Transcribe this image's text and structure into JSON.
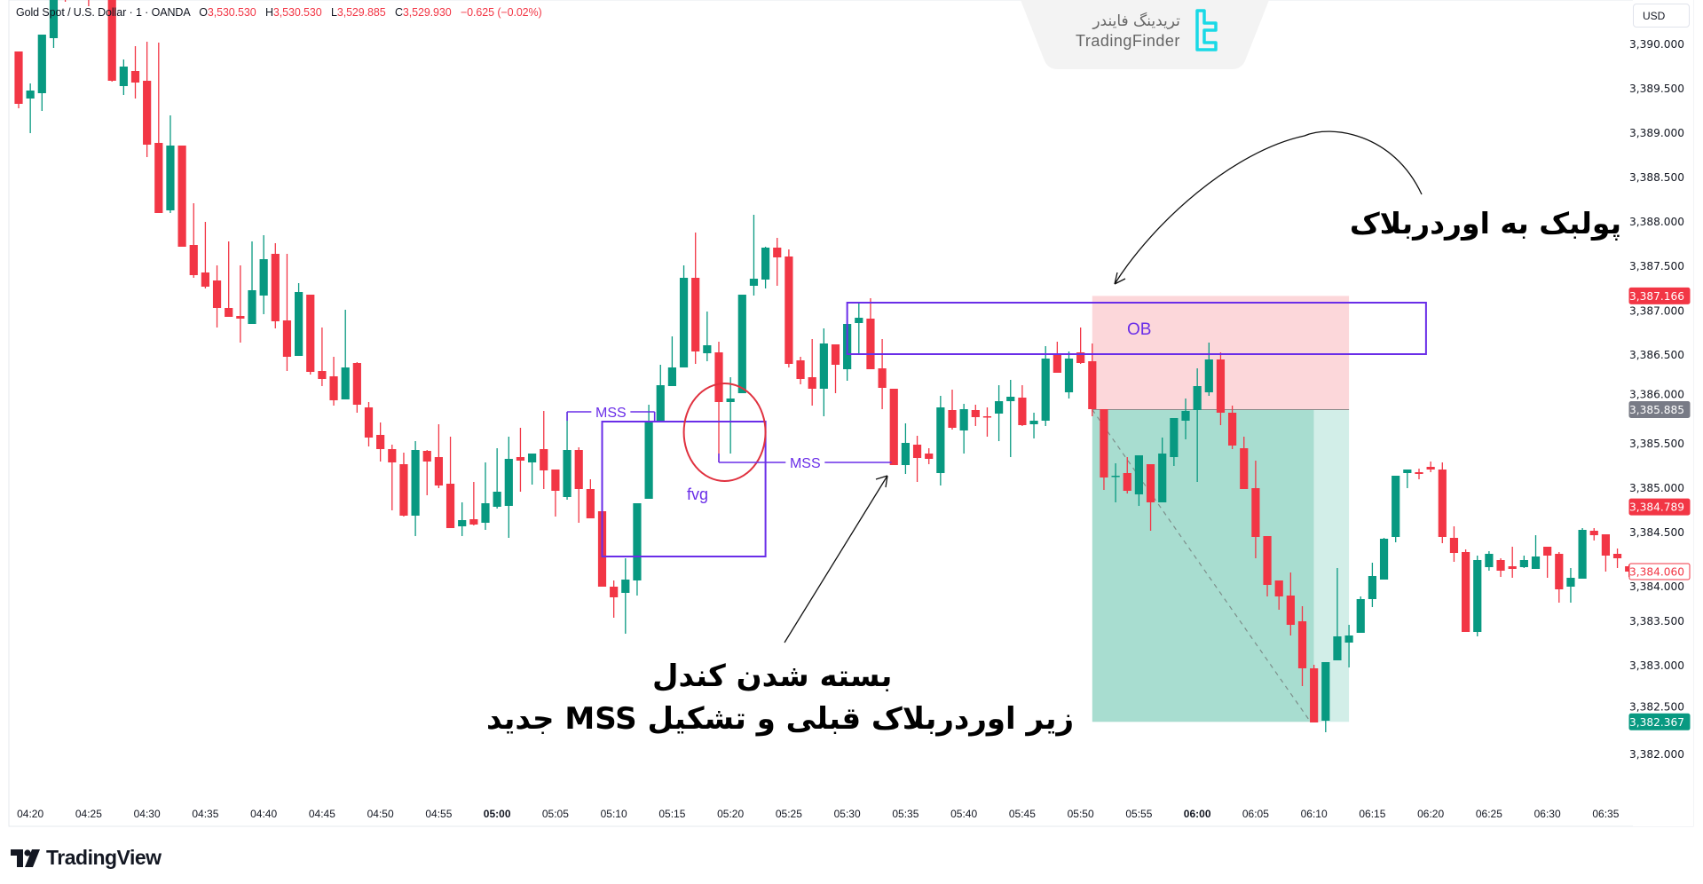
{
  "header": {
    "symbol": "Gold Spot / U.S. Dollar · 1 · OANDA",
    "open_label": "O",
    "open": "3,530.530",
    "high_label": "H",
    "high": "3,530.530",
    "low_label": "L",
    "low": "3,529.885",
    "close_label": "C",
    "close": "3,529.930",
    "change": "−0.625 (−0.02%)"
  },
  "price_axis": {
    "currency": "USD"
  },
  "watermark": {
    "name_fa": "تریدینگ فایندر",
    "name_en": "TradingFinder"
  },
  "footer": {
    "brand": "TradingView"
  },
  "annotations": {
    "pullback_text": "پولبک به اوردربلاک",
    "close_text_line1": "بسته شدن کندل",
    "close_text_line2": "زیر اوردربلاک قبلی و تشکیل MSS جدید",
    "ob_label": "OB",
    "mss_label_1": "MSS",
    "mss_label_2": "MSS",
    "fvg_label": "fvg"
  },
  "colors": {
    "up": "#089981",
    "down": "#f23645",
    "drawing": "#6a2ee8",
    "circle": "#e0313f",
    "stop_zone": "#fcd7da",
    "target_zone": "#a8ddd0",
    "target_zone_light": "#d2eee8"
  },
  "chart_data": {
    "type": "candlestick",
    "instrument": "Gold Spot / U.S. Dollar",
    "interval": "1",
    "ylim": [
      3381.75,
      3390.5
    ],
    "y_ticks": [
      "3,390.000",
      "3,389.500",
      "3,389.000",
      "3,388.500",
      "3,388.000",
      "3,387.500",
      "3,387.000",
      "3,386.500",
      "3,386.000",
      "3,385.500",
      "3,385.000",
      "3,384.500",
      "3,384.000",
      "3,383.500",
      "3,383.000",
      "3,382.500",
      "3,382.000"
    ],
    "y_tick_values": [
      3390,
      3389.5,
      3389,
      3388.5,
      3388,
      3387.5,
      3387,
      3386.5,
      3386,
      3385.5,
      3385,
      3384.5,
      3384,
      3383.5,
      3383,
      3382.5,
      3382
    ],
    "x_ticks": [
      "04:20",
      "04:25",
      "04:30",
      "04:35",
      "04:40",
      "04:45",
      "04:50",
      "04:55",
      "05:00",
      "05:05",
      "05:10",
      "05:15",
      "05:20",
      "05:25",
      "05:30",
      "05:35",
      "05:40",
      "05:45",
      "05:50",
      "05:55",
      "06:00",
      "06:05",
      "06:10",
      "06:15",
      "06:20",
      "06:25",
      "06:30",
      "06:35"
    ],
    "x_ticks_bold": [
      "05:00",
      "06:00"
    ],
    "price_badges": [
      {
        "value": 3387.166,
        "label": "3,387.166",
        "style": "red"
      },
      {
        "value": 3385.885,
        "label": "3,385.885",
        "style": "grey"
      },
      {
        "value": 3384.789,
        "label": "3,384.789",
        "style": "red"
      },
      {
        "value": 3384.06,
        "label": "3,384.060",
        "style": "outline"
      },
      {
        "value": 3382.367,
        "label": "3,382.367",
        "style": "green"
      }
    ],
    "candles_columns": [
      "time",
      "open",
      "high",
      "low",
      "close"
    ],
    "candles": [
      [
        "04:19",
        3389.92,
        3389.92,
        3389.28,
        3389.33
      ],
      [
        "04:20",
        3389.39,
        3389.56,
        3389.0,
        3389.48
      ],
      [
        "04:21",
        3389.45,
        3390.11,
        3389.25,
        3390.11
      ],
      [
        "04:22",
        3390.07,
        3390.7,
        3389.96,
        3390.6
      ],
      [
        "04:23",
        3390.9,
        3391.0,
        3390.48,
        3390.6
      ],
      [
        "04:24",
        3390.6,
        3391.1,
        3390.55,
        3391.0
      ],
      [
        "04:25",
        3391.0,
        3391.1,
        3390.43,
        3390.7
      ],
      [
        "04:26",
        3390.8,
        3391.0,
        3390.52,
        3390.6
      ],
      [
        "04:27",
        3390.6,
        3390.8,
        3389.58,
        3389.59
      ],
      [
        "04:28",
        3389.53,
        3389.83,
        3389.43,
        3389.75
      ],
      [
        "04:29",
        3389.7,
        3389.98,
        3389.39,
        3389.57
      ],
      [
        "04:30",
        3389.59,
        3390.03,
        3388.73,
        3388.87
      ],
      [
        "04:31",
        3388.89,
        3390.02,
        3388.1,
        3388.1
      ],
      [
        "04:32",
        3388.13,
        3389.2,
        3388.1,
        3388.86
      ],
      [
        "04:33",
        3388.86,
        3388.86,
        3387.72,
        3387.72
      ],
      [
        "04:34",
        3387.74,
        3388.21,
        3387.37,
        3387.4
      ],
      [
        "04:35",
        3387.43,
        3388.0,
        3387.25,
        3387.27
      ],
      [
        "04:36",
        3387.34,
        3387.51,
        3386.81,
        3387.03
      ],
      [
        "04:37",
        3387.03,
        3387.78,
        3386.93,
        3386.93
      ],
      [
        "04:38",
        3386.94,
        3387.51,
        3386.64,
        3386.91
      ],
      [
        "04:39",
        3386.85,
        3387.78,
        3386.85,
        3387.23
      ],
      [
        "04:40",
        3387.17,
        3387.85,
        3386.96,
        3387.58
      ],
      [
        "04:41",
        3387.64,
        3387.76,
        3386.8,
        3386.88
      ],
      [
        "04:42",
        3386.89,
        3387.64,
        3386.32,
        3386.48
      ],
      [
        "04:43",
        3386.49,
        3387.31,
        3386.49,
        3387.21
      ],
      [
        "04:44",
        3387.18,
        3387.18,
        3386.28,
        3386.31
      ],
      [
        "04:45",
        3386.32,
        3386.81,
        3386.15,
        3386.23
      ],
      [
        "04:46",
        3386.26,
        3386.48,
        3385.93,
        3385.99
      ],
      [
        "04:47",
        3386.0,
        3387.01,
        3386.0,
        3386.36
      ],
      [
        "04:48",
        3386.41,
        3386.42,
        3385.85,
        3385.94
      ],
      [
        "04:49",
        3385.91,
        3385.97,
        3385.47,
        3385.57
      ],
      [
        "04:50",
        3385.6,
        3385.74,
        3385.3,
        3385.44
      ],
      [
        "04:51",
        3385.44,
        3385.49,
        3384.75,
        3385.29
      ],
      [
        "04:52",
        3385.27,
        3385.4,
        3384.68,
        3384.69
      ],
      [
        "04:53",
        3384.69,
        3385.53,
        3384.46,
        3385.43
      ],
      [
        "04:54",
        3385.42,
        3385.43,
        3384.92,
        3385.3
      ],
      [
        "04:55",
        3385.35,
        3385.72,
        3385.0,
        3385.03
      ],
      [
        "04:56",
        3385.05,
        3385.58,
        3384.55,
        3384.55
      ],
      [
        "04:57",
        3384.57,
        3384.84,
        3384.46,
        3384.64
      ],
      [
        "04:58",
        3384.65,
        3385.07,
        3384.58,
        3384.59
      ],
      [
        "04:59",
        3384.61,
        3385.29,
        3384.53,
        3384.83
      ],
      [
        "05:00",
        3384.79,
        3385.45,
        3384.77,
        3384.96
      ],
      [
        "05:01",
        3384.8,
        3385.58,
        3384.44,
        3385.33
      ],
      [
        "05:02",
        3385.35,
        3385.68,
        3384.96,
        3385.31
      ],
      [
        "05:03",
        3385.29,
        3385.39,
        3385.04,
        3385.39
      ],
      [
        "05:04",
        3385.44,
        3385.87,
        3384.99,
        3385.2
      ],
      [
        "05:05",
        3385.21,
        3385.21,
        3384.68,
        3384.97
      ],
      [
        "05:06",
        3384.9,
        3385.86,
        3384.87,
        3385.43
      ],
      [
        "05:07",
        3385.43,
        3385.46,
        3384.61,
        3384.99
      ],
      [
        "05:08",
        3384.99,
        3385.1,
        3384.66,
        3384.66
      ],
      [
        "05:09",
        3384.74,
        3384.74,
        3383.89,
        3383.89
      ],
      [
        "05:10",
        3383.89,
        3383.96,
        3383.54,
        3383.77
      ],
      [
        "05:11",
        3383.82,
        3384.21,
        3383.36,
        3383.97
      ],
      [
        "05:12",
        3383.96,
        3384.83,
        3383.79,
        3384.83
      ],
      [
        "05:13",
        3384.88,
        3385.94,
        3384.88,
        3385.76
      ],
      [
        "05:14",
        3385.76,
        3386.39,
        3385.76,
        3386.16
      ],
      [
        "05:15",
        3386.15,
        3386.71,
        3386.15,
        3386.36
      ],
      [
        "05:16",
        3386.36,
        3387.51,
        3386.36,
        3387.37
      ],
      [
        "05:17",
        3387.37,
        3387.88,
        3386.4,
        3386.54
      ],
      [
        "05:18",
        3386.52,
        3386.99,
        3386.43,
        3386.61
      ],
      [
        "05:19",
        3386.53,
        3386.65,
        3385.29,
        3385.97
      ],
      [
        "05:20",
        3385.97,
        3386.25,
        3385.39,
        3386.01
      ],
      [
        "05:21",
        3386.07,
        3387.18,
        3386.07,
        3387.18
      ],
      [
        "05:22",
        3387.28,
        3388.08,
        3387.17,
        3387.36
      ],
      [
        "05:23",
        3387.35,
        3387.72,
        3387.25,
        3387.71
      ],
      [
        "05:24",
        3387.71,
        3387.82,
        3387.28,
        3387.6
      ],
      [
        "05:25",
        3387.61,
        3387.69,
        3386.36,
        3386.4
      ],
      [
        "05:26",
        3386.44,
        3386.48,
        3386.17,
        3386.23
      ],
      [
        "05:27",
        3386.25,
        3386.68,
        3385.93,
        3386.12
      ],
      [
        "05:28",
        3386.12,
        3386.8,
        3385.81,
        3386.63
      ],
      [
        "05:29",
        3386.62,
        3386.62,
        3386.07,
        3386.39
      ],
      [
        "05:30",
        3386.34,
        3386.85,
        3386.21,
        3386.85
      ],
      [
        "05:31",
        3386.86,
        3387.09,
        3386.5,
        3386.92
      ],
      [
        "05:32",
        3386.91,
        3387.14,
        3386.34,
        3386.34
      ],
      [
        "05:33",
        3386.35,
        3386.68,
        3385.89,
        3386.13
      ],
      [
        "05:34",
        3386.12,
        3386.12,
        3385.26,
        3385.26
      ],
      [
        "05:35",
        3385.26,
        3385.73,
        3385.16,
        3385.51
      ],
      [
        "05:36",
        3385.49,
        3385.59,
        3385.07,
        3385.34
      ],
      [
        "05:37",
        3385.39,
        3385.45,
        3385.27,
        3385.33
      ],
      [
        "05:38",
        3385.17,
        3386.04,
        3385.03,
        3385.91
      ],
      [
        "05:39",
        3385.88,
        3386.11,
        3385.66,
        3385.68
      ],
      [
        "05:40",
        3385.65,
        3385.95,
        3385.39,
        3385.89
      ],
      [
        "05:41",
        3385.88,
        3385.94,
        3385.7,
        3385.8
      ],
      [
        "05:42",
        3385.81,
        3385.91,
        3385.58,
        3385.8
      ],
      [
        "05:43",
        3385.84,
        3386.16,
        3385.53,
        3385.98
      ],
      [
        "05:44",
        3385.98,
        3386.22,
        3385.35,
        3386.03
      ],
      [
        "05:45",
        3386.02,
        3386.16,
        3385.7,
        3385.71
      ],
      [
        "05:46",
        3385.72,
        3385.85,
        3385.56,
        3385.76
      ],
      [
        "05:47",
        3385.76,
        3386.6,
        3385.7,
        3386.46
      ],
      [
        "05:48",
        3386.5,
        3386.65,
        3386.3,
        3386.3
      ],
      [
        "05:49",
        3386.08,
        3386.54,
        3386.01,
        3386.46
      ],
      [
        "05:50",
        3386.53,
        3386.81,
        3386.4,
        3386.41
      ],
      [
        "05:51",
        3386.43,
        3386.63,
        3385.81,
        3385.89
      ],
      [
        "05:52",
        3385.89,
        3385.89,
        3384.98,
        3385.12
      ],
      [
        "05:53",
        3385.13,
        3385.28,
        3384.84,
        3385.14
      ],
      [
        "05:54",
        3385.17,
        3385.35,
        3384.94,
        3384.97
      ],
      [
        "05:55",
        3384.93,
        3385.37,
        3384.8,
        3385.37
      ],
      [
        "05:56",
        3385.27,
        3385.27,
        3384.52,
        3384.84
      ],
      [
        "05:57",
        3384.84,
        3385.57,
        3384.84,
        3385.39
      ],
      [
        "05:58",
        3385.35,
        3385.79,
        3385.25,
        3385.79
      ],
      [
        "05:59",
        3385.76,
        3386.01,
        3385.55,
        3385.87
      ],
      [
        "06:00",
        3385.88,
        3386.35,
        3385.07,
        3386.15
      ],
      [
        "06:01",
        3386.08,
        3386.64,
        3386.04,
        3386.45
      ],
      [
        "06:02",
        3386.45,
        3386.53,
        3385.71,
        3385.85
      ],
      [
        "06:03",
        3385.85,
        3385.93,
        3385.44,
        3385.48
      ],
      [
        "06:04",
        3385.45,
        3385.58,
        3384.99,
        3384.99
      ],
      [
        "06:05",
        3385.0,
        3385.31,
        3384.21,
        3384.45
      ],
      [
        "06:06",
        3384.46,
        3384.46,
        3383.78,
        3383.91
      ],
      [
        "06:07",
        3383.96,
        3383.96,
        3383.63,
        3383.78
      ],
      [
        "06:08",
        3383.79,
        3384.05,
        3383.34,
        3383.46
      ],
      [
        "06:09",
        3383.5,
        3383.67,
        3382.77,
        3382.97
      ],
      [
        "06:10",
        3382.97,
        3383.01,
        3382.36,
        3382.36
      ],
      [
        "06:11",
        3382.38,
        3383.04,
        3382.25,
        3383.04
      ],
      [
        "06:12",
        3383.06,
        3384.1,
        3383.06,
        3383.33
      ],
      [
        "06:13",
        3383.26,
        3383.46,
        3382.98,
        3383.34
      ],
      [
        "06:14",
        3383.37,
        3383.78,
        3383.37,
        3383.75
      ],
      [
        "06:15",
        3383.75,
        3384.16,
        3383.66,
        3384.01
      ],
      [
        "06:16",
        3383.97,
        3384.44,
        3383.97,
        3384.43
      ],
      [
        "06:17",
        3384.45,
        3385.14,
        3384.39,
        3385.14
      ],
      [
        "06:18",
        3385.17,
        3385.21,
        3385.0,
        3385.21
      ],
      [
        "06:19",
        3385.18,
        3385.22,
        3385.1,
        3385.16
      ],
      [
        "06:20",
        3385.24,
        3385.3,
        3385.18,
        3385.21
      ],
      [
        "06:21",
        3385.21,
        3385.29,
        3384.38,
        3384.45
      ],
      [
        "06:22",
        3384.44,
        3384.57,
        3384.17,
        3384.27
      ],
      [
        "06:23",
        3384.28,
        3384.31,
        3383.38,
        3383.38
      ],
      [
        "06:24",
        3383.38,
        3384.24,
        3383.33,
        3384.19
      ],
      [
        "06:25",
        3384.11,
        3384.29,
        3384.07,
        3384.26
      ],
      [
        "06:26",
        3384.19,
        3384.21,
        3384.0,
        3384.07
      ],
      [
        "06:27",
        3384.12,
        3384.34,
        3383.99,
        3384.09
      ],
      [
        "06:28",
        3384.11,
        3384.24,
        3384.1,
        3384.19
      ],
      [
        "06:29",
        3384.09,
        3384.47,
        3384.09,
        3384.23
      ],
      [
        "06:30",
        3384.34,
        3384.34,
        3383.99,
        3384.24
      ],
      [
        "06:31",
        3384.26,
        3384.28,
        3383.71,
        3383.86
      ],
      [
        "06:32",
        3383.89,
        3384.1,
        3383.71,
        3383.99
      ],
      [
        "06:33",
        3383.98,
        3384.55,
        3383.98,
        3384.53
      ],
      [
        "06:34",
        3384.52,
        3384.55,
        3384.41,
        3384.47
      ],
      [
        "06:35",
        3384.48,
        3384.48,
        3384.06,
        3384.24
      ],
      [
        "06:36",
        3384.26,
        3384.32,
        3384.1,
        3384.21
      ],
      [
        "06:37",
        3384.12,
        3384.14,
        3384.0,
        3384.06
      ]
    ],
    "order_block": {
      "label": "OB",
      "top": 3387.09,
      "bottom": 3386.51,
      "from": "05:30",
      "to": "06:19.6"
    },
    "short_position": {
      "entry": 3385.885,
      "stop": 3387.166,
      "target": 3382.367,
      "from": "05:51",
      "to": "06:13",
      "filled_until": "06:10"
    },
    "fvg_box": {
      "label": "fvg",
      "top": 3385.75,
      "bottom": 3384.23,
      "from": "05:09",
      "to": "05:23"
    },
    "mss_lines": [
      {
        "label": "MSS",
        "price": 3385.86,
        "from": "05:06",
        "to": "05:13.5"
      },
      {
        "label": "MSS",
        "price": 3385.29,
        "from": "05:19",
        "to": "05:33.8"
      }
    ],
    "highlight_circle": {
      "time": "05:19.5",
      "price": 3385.63
    }
  }
}
